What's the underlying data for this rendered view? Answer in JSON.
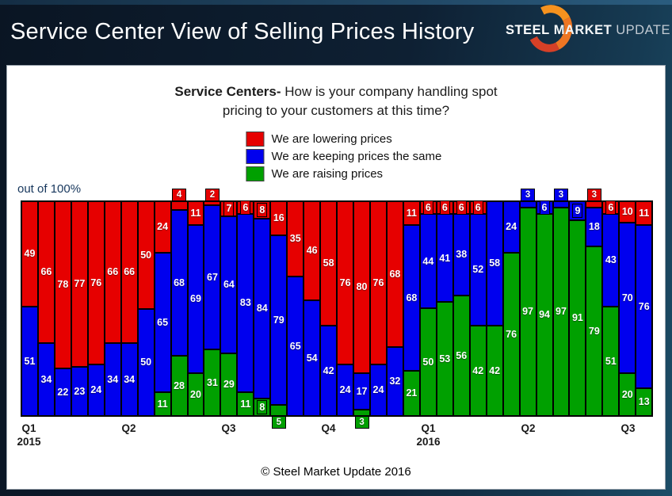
{
  "header": {
    "title": "Service Center View of Selling Prices History",
    "logo": {
      "steel": "STEEL",
      "market": "MARKET",
      "update": "UPDATE",
      "accent_color": "#ee7623"
    }
  },
  "chart_header": {
    "title_bold": "Service Centers-",
    "title_rest": " How is your company handling spot",
    "title_line2": "pricing to your customers at this time?"
  },
  "legend": [
    {
      "key": "lowering",
      "label": "We are lowering prices",
      "color": "#e60000"
    },
    {
      "key": "same",
      "label": "We are keeping prices the same",
      "color": "#0000ee"
    },
    {
      "key": "raising",
      "label": "We are raising prices",
      "color": "#00a000"
    }
  ],
  "axis_note": "out of 100%",
  "footer": {
    "copyright": "© Steel Market Update 2016"
  },
  "colors": {
    "lowering": "#e60000",
    "same": "#0000ee",
    "raising": "#00a000"
  },
  "chart_data": {
    "type": "bar",
    "stacked": true,
    "percent_total": 100,
    "ylim": [
      0,
      100
    ],
    "stack_order_top_to_bottom": [
      "lowering",
      "same",
      "raising"
    ],
    "series": [
      {
        "key": "lowering",
        "name": "We are lowering prices",
        "color": "#e60000"
      },
      {
        "key": "same",
        "name": "We are keeping prices the same",
        "color": "#0000ee"
      },
      {
        "key": "raising",
        "name": "We are raising prices",
        "color": "#00a000"
      }
    ],
    "bars": [
      {
        "lowering": 49,
        "same": 51,
        "raising": 0
      },
      {
        "lowering": 66,
        "same": 34,
        "raising": 0
      },
      {
        "lowering": 78,
        "same": 22,
        "raising": 0
      },
      {
        "lowering": 77,
        "same": 23,
        "raising": 0
      },
      {
        "lowering": 76,
        "same": 24,
        "raising": 0
      },
      {
        "lowering": 66,
        "same": 34,
        "raising": 0
      },
      {
        "lowering": 66,
        "same": 34,
        "raising": 0
      },
      {
        "lowering": 50,
        "same": 50,
        "raising": 0
      },
      {
        "lowering": 24,
        "same": 65,
        "raising": 11
      },
      {
        "lowering": 4,
        "same": 68,
        "raising": 28
      },
      {
        "lowering": 11,
        "same": 69,
        "raising": 20
      },
      {
        "lowering": 2,
        "same": 67,
        "raising": 31
      },
      {
        "lowering": 7,
        "same": 64,
        "raising": 29
      },
      {
        "lowering": 6,
        "same": 83,
        "raising": 11
      },
      {
        "lowering": 8,
        "same": 84,
        "raising": 8
      },
      {
        "lowering": 16,
        "same": 79,
        "raising": 5
      },
      {
        "lowering": 35,
        "same": 65,
        "raising": 0
      },
      {
        "lowering": 46,
        "same": 54,
        "raising": 0
      },
      {
        "lowering": 58,
        "same": 42,
        "raising": 0
      },
      {
        "lowering": 76,
        "same": 24,
        "raising": 0
      },
      {
        "lowering": 80,
        "same": 17,
        "raising": 3
      },
      {
        "lowering": 76,
        "same": 24,
        "raising": 0
      },
      {
        "lowering": 68,
        "same": 32,
        "raising": 0
      },
      {
        "lowering": 11,
        "same": 68,
        "raising": 21
      },
      {
        "lowering": 6,
        "same": 44,
        "raising": 50
      },
      {
        "lowering": 6,
        "same": 41,
        "raising": 53
      },
      {
        "lowering": 6,
        "same": 38,
        "raising": 56
      },
      {
        "lowering": 6,
        "same": 52,
        "raising": 42
      },
      {
        "lowering": 0,
        "same": 58,
        "raising": 42
      },
      {
        "lowering": 0,
        "same": 24,
        "raising": 76
      },
      {
        "lowering": 0,
        "same": 3,
        "raising": 97
      },
      {
        "lowering": 0,
        "same": 6,
        "raising": 94
      },
      {
        "lowering": 0,
        "same": 3,
        "raising": 97
      },
      {
        "lowering": 0,
        "same": 9,
        "raising": 91
      },
      {
        "lowering": 3,
        "same": 18,
        "raising": 79
      },
      {
        "lowering": 6,
        "same": 43,
        "raising": 51
      },
      {
        "lowering": 10,
        "same": 70,
        "raising": 20
      },
      {
        "lowering": 11,
        "same": 76,
        "raising": 13
      }
    ],
    "x_ticks": [
      {
        "label": "Q1",
        "year": "2015",
        "bar_index": 0
      },
      {
        "label": "Q2",
        "bar_index": 6
      },
      {
        "label": "Q3",
        "bar_index": 12
      },
      {
        "label": "Q4",
        "bar_index": 18
      },
      {
        "label": "Q1",
        "year": "2016",
        "bar_index": 24
      },
      {
        "label": "Q2",
        "bar_index": 30
      },
      {
        "label": "Q3",
        "bar_index": 36
      }
    ],
    "boxed_label_max": 5,
    "tight_label_max": 9,
    "legend_position": "top-center",
    "grid": false
  }
}
